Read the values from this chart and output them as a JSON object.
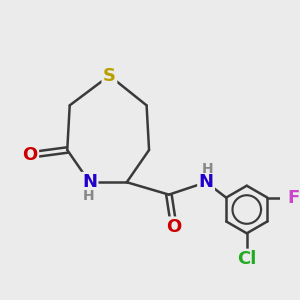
{
  "background_color": "#ebebeb",
  "bond_color": "#3a3a3a",
  "lw": 1.8,
  "atom_colors": {
    "S": "#b8a000",
    "N": "#2200cc",
    "O": "#cc0000",
    "Cl": "#22aa22",
    "F": "#cc44cc",
    "H_gray": "#888888"
  },
  "font_size_main": 13,
  "font_size_h": 10
}
